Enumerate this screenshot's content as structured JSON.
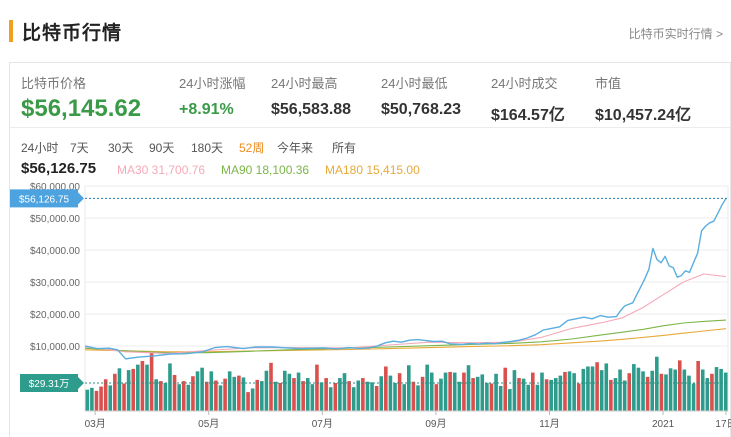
{
  "header": {
    "title": "比特币行情",
    "more_link": "比特币实时行情 >"
  },
  "stats": {
    "price_label": "比特币价格",
    "price_value": "$56,145.62",
    "change_label": "24小时涨幅",
    "change_value": "+8.91%",
    "high_label": "24小时最高",
    "high_value": "$56,583.88",
    "low_label": "24小时最低",
    "low_value": "$50,768.23",
    "volume_label": "24小时成交",
    "volume_value": "$164.57亿",
    "cap_label": "市值",
    "cap_value": "$10,457.24亿"
  },
  "ranges": [
    "24小时",
    "7天",
    "30天",
    "90天",
    "180天",
    "52周",
    "今年来",
    "所有"
  ],
  "active_range": "52周",
  "current": {
    "price": "$56,126.75",
    "ma30": "MA30 31,700.76",
    "ma90": "MA90 18,100.36",
    "ma180": "MA180 15,415.00",
    "price_badge": "$56,126.75",
    "volume_badge": "$29.31万"
  },
  "colors": {
    "accent": "#f0a01e",
    "up": "#3a9a47",
    "price_line": "#5aaee0",
    "ma30": "#f5a9b8",
    "ma90": "#7ab648",
    "ma180": "#e8a93a",
    "vol_up": "#2e9c8c",
    "vol_down": "#d9504e",
    "active_tab": "#f08c1e"
  },
  "chart_data": {
    "type": "line",
    "ylim": [
      0,
      60000
    ],
    "yticks": [
      "$10,000.00",
      "$20,000.00",
      "$30,000.00",
      "$40,000.00",
      "$50,000.00",
      "$60,000.00"
    ],
    "ytick_values": [
      10000,
      20000,
      30000,
      40000,
      50000,
      60000
    ],
    "x_labels": [
      "03月",
      "05月",
      "07月",
      "09月",
      "11月",
      "2021",
      "17日"
    ],
    "x_label_positions": [
      5,
      61,
      117,
      173,
      229,
      285,
      316
    ],
    "x_count": 318,
    "series": [
      {
        "name": "Price",
        "points": [
          [
            0,
            10000
          ],
          [
            6,
            9200
          ],
          [
            12,
            9300
          ],
          [
            16,
            8800
          ],
          [
            20,
            6000
          ],
          [
            26,
            6500
          ],
          [
            34,
            6900
          ],
          [
            42,
            7500
          ],
          [
            50,
            7600
          ],
          [
            58,
            8200
          ],
          [
            64,
            9500
          ],
          [
            70,
            9800
          ],
          [
            78,
            9200
          ],
          [
            84,
            9700
          ],
          [
            92,
            9700
          ],
          [
            100,
            9400
          ],
          [
            106,
            9200
          ],
          [
            112,
            9300
          ],
          [
            118,
            9400
          ],
          [
            124,
            9100
          ],
          [
            130,
            9500
          ],
          [
            136,
            9200
          ],
          [
            140,
            9400
          ],
          [
            144,
            10000
          ],
          [
            148,
            11000
          ],
          [
            152,
            11500
          ],
          [
            156,
            11200
          ],
          [
            160,
            11800
          ],
          [
            164,
            12000
          ],
          [
            168,
            11700
          ],
          [
            172,
            11400
          ],
          [
            176,
            11500
          ],
          [
            180,
            10700
          ],
          [
            186,
            10500
          ],
          [
            190,
            10800
          ],
          [
            194,
            10600
          ],
          [
            198,
            10900
          ],
          [
            202,
            10700
          ],
          [
            206,
            11100
          ],
          [
            210,
            11400
          ],
          [
            214,
            11800
          ],
          [
            218,
            12500
          ],
          [
            222,
            13500
          ],
          [
            226,
            15000
          ],
          [
            230,
            15500
          ],
          [
            234,
            16000
          ],
          [
            238,
            18000
          ],
          [
            242,
            18500
          ],
          [
            246,
            19000
          ],
          [
            250,
            18500
          ],
          [
            254,
            19500
          ],
          [
            258,
            19000
          ],
          [
            262,
            19200
          ],
          [
            264,
            21000
          ],
          [
            266,
            22500
          ],
          [
            268,
            23000
          ],
          [
            270,
            23500
          ],
          [
            272,
            26000
          ],
          [
            274,
            28500
          ],
          [
            276,
            31000
          ],
          [
            278,
            34000
          ],
          [
            280,
            40500
          ],
          [
            282,
            37000
          ],
          [
            284,
            36000
          ],
          [
            286,
            38000
          ],
          [
            288,
            35000
          ],
          [
            290,
            34500
          ],
          [
            292,
            31500
          ],
          [
            294,
            32000
          ],
          [
            296,
            33500
          ],
          [
            298,
            33000
          ],
          [
            300,
            36000
          ],
          [
            302,
            39000
          ],
          [
            304,
            46000
          ],
          [
            306,
            47500
          ],
          [
            308,
            48500
          ],
          [
            310,
            49000
          ],
          [
            312,
            51500
          ],
          [
            314,
            54000
          ],
          [
            316,
            56127
          ]
        ]
      },
      {
        "name": "MA30",
        "points": [
          [
            0,
            9700
          ],
          [
            20,
            8200
          ],
          [
            40,
            7700
          ],
          [
            60,
            8600
          ],
          [
            80,
            9400
          ],
          [
            100,
            9500
          ],
          [
            130,
            9400
          ],
          [
            150,
            10300
          ],
          [
            170,
            11200
          ],
          [
            190,
            11000
          ],
          [
            210,
            11200
          ],
          [
            225,
            12700
          ],
          [
            240,
            15500
          ],
          [
            255,
            17300
          ],
          [
            265,
            18800
          ],
          [
            275,
            22000
          ],
          [
            285,
            26000
          ],
          [
            295,
            30000
          ],
          [
            305,
            32500
          ],
          [
            316,
            31701
          ]
        ]
      },
      {
        "name": "MA90",
        "points": [
          [
            0,
            9300
          ],
          [
            20,
            8500
          ],
          [
            40,
            7900
          ],
          [
            60,
            7900
          ],
          [
            80,
            8300
          ],
          [
            100,
            8800
          ],
          [
            130,
            9300
          ],
          [
            150,
            9700
          ],
          [
            170,
            10100
          ],
          [
            190,
            10500
          ],
          [
            210,
            10800
          ],
          [
            225,
            11300
          ],
          [
            240,
            12200
          ],
          [
            255,
            13500
          ],
          [
            265,
            14300
          ],
          [
            275,
            15200
          ],
          [
            285,
            16300
          ],
          [
            295,
            17200
          ],
          [
            305,
            17700
          ],
          [
            316,
            18100
          ]
        ]
      },
      {
        "name": "MA180",
        "points": [
          [
            0,
            8800
          ],
          [
            20,
            8500
          ],
          [
            40,
            8200
          ],
          [
            60,
            8200
          ],
          [
            80,
            8400
          ],
          [
            100,
            8600
          ],
          [
            130,
            8900
          ],
          [
            150,
            9200
          ],
          [
            170,
            9500
          ],
          [
            190,
            9800
          ],
          [
            210,
            10100
          ],
          [
            225,
            10400
          ],
          [
            240,
            11000
          ],
          [
            255,
            11600
          ],
          [
            265,
            12100
          ],
          [
            275,
            12700
          ],
          [
            285,
            13300
          ],
          [
            295,
            14000
          ],
          [
            305,
            14700
          ],
          [
            316,
            15415
          ]
        ]
      }
    ],
    "volume_series": [
      {
        "name": "Volume",
        "ylim": [
          0,
          100
        ],
        "values": [
          35,
          38,
          33,
          40,
          52,
          42,
          61,
          70,
          45,
          67,
          69,
          76,
          82,
          76,
          97,
          52,
          49,
          46,
          78,
          59,
          44,
          49,
          43,
          57,
          65,
          71,
          48,
          65,
          50,
          42,
          53,
          65,
          56,
          58,
          55,
          31,
          37,
          51,
          49,
          66,
          79,
          48,
          46,
          66,
          61,
          54,
          63,
          49,
          54,
          44,
          76,
          47,
          54,
          39,
          46,
          54,
          62,
          49,
          39,
          50,
          54,
          48,
          47,
          41,
          57,
          73,
          58,
          46,
          62,
          44,
          75,
          48,
          42,
          56,
          76,
          63,
          44,
          53,
          63,
          64,
          63,
          48,
          63,
          75,
          54,
          56,
          60,
          46,
          45,
          61,
          41,
          71,
          36,
          67,
          54,
          53,
          43,
          63,
          43,
          63,
          52,
          51,
          54,
          58,
          64,
          65,
          62,
          45,
          69,
          73,
          73,
          80,
          67,
          78,
          51,
          54,
          68,
          50,
          62,
          77,
          71,
          65,
          56,
          66,
          89,
          61,
          60,
          70,
          68,
          83,
          68,
          58,
          45,
          82,
          68,
          54,
          61,
          72,
          69,
          63
        ],
        "directions": [
          "u",
          "u",
          "d",
          "d",
          "d",
          "u",
          "d",
          "u",
          "d",
          "u",
          "d",
          "u",
          "d",
          "u",
          "d",
          "u",
          "d",
          "u",
          "u",
          "d",
          "u",
          "d",
          "u",
          "d",
          "u",
          "u",
          "d",
          "u",
          "d",
          "u",
          "d",
          "u",
          "u",
          "d",
          "u",
          "d",
          "u",
          "d",
          "u",
          "u",
          "d",
          "u",
          "d",
          "u",
          "u",
          "d",
          "u",
          "d",
          "u",
          "u",
          "d",
          "u",
          "d",
          "u",
          "d",
          "u",
          "u",
          "d",
          "u",
          "u",
          "d",
          "u",
          "u",
          "d",
          "u",
          "d",
          "u",
          "u",
          "d",
          "u",
          "u",
          "d",
          "u",
          "d",
          "u",
          "u",
          "d",
          "u",
          "u",
          "d",
          "u",
          "u",
          "d",
          "u",
          "d",
          "u",
          "u",
          "u",
          "d",
          "u",
          "u",
          "d",
          "u",
          "u",
          "d",
          "u",
          "u",
          "d",
          "u",
          "u",
          "d",
          "u",
          "u",
          "u",
          "d",
          "u",
          "u",
          "d",
          "u",
          "u",
          "u",
          "d",
          "u",
          "u",
          "d",
          "u",
          "u",
          "u",
          "d",
          "u",
          "u",
          "u",
          "d",
          "u",
          "u",
          "d",
          "u",
          "u",
          "u",
          "d",
          "u",
          "u",
          "u",
          "d",
          "u",
          "u",
          "d",
          "u",
          "u",
          "u"
        ]
      }
    ]
  }
}
